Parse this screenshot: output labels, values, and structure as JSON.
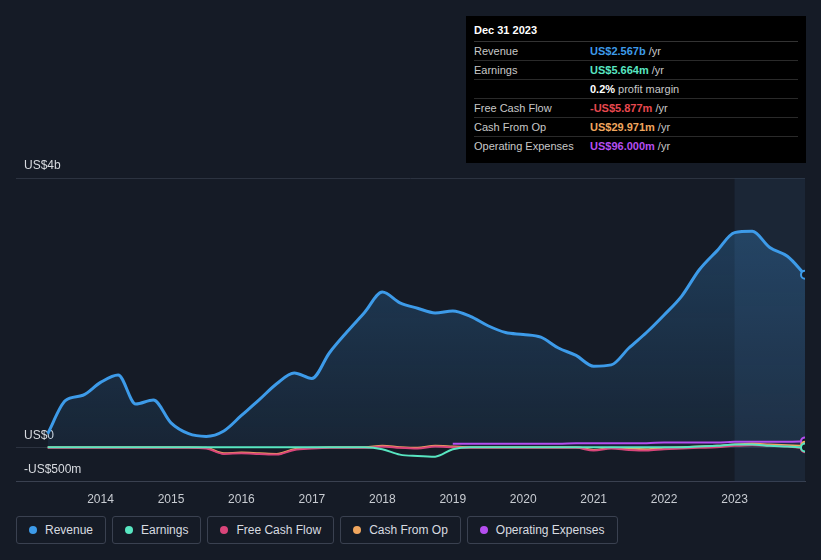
{
  "chart_data": {
    "type": "line",
    "x": [
      2013.25,
      2013.5,
      2013.75,
      2014,
      2014.25,
      2014.5,
      2014.75,
      2015,
      2015.25,
      2015.5,
      2015.75,
      2016,
      2016.25,
      2016.5,
      2016.75,
      2017,
      2017.25,
      2017.5,
      2017.75,
      2018,
      2018.25,
      2018.5,
      2018.75,
      2019,
      2019.25,
      2019.5,
      2019.75,
      2020,
      2020.25,
      2020.5,
      2020.75,
      2021,
      2021.25,
      2021.5,
      2021.75,
      2022,
      2022.25,
      2022.5,
      2022.75,
      2023,
      2023.25,
      2023.5,
      2023.75,
      2024
    ],
    "xlim": [
      2012.8,
      2024
    ],
    "xticks": [
      2014,
      2015,
      2016,
      2017,
      2018,
      2019,
      2020,
      2021,
      2022,
      2023
    ],
    "ylim": [
      -0.5,
      4
    ],
    "yticks": [
      {
        "value": -0.5,
        "label": "-US$500m"
      },
      {
        "value": 0,
        "label": "US$0"
      },
      {
        "value": 4,
        "label": "US$4b"
      }
    ],
    "grid": true,
    "legend": "bottom",
    "series": [
      {
        "name": "Revenue",
        "color": "#3d9be9",
        "values": [
          0.21,
          0.7,
          0.78,
          0.97,
          1.08,
          0.65,
          0.71,
          0.37,
          0.21,
          0.17,
          0.25,
          0.48,
          0.71,
          0.95,
          1.11,
          1.03,
          1.41,
          1.72,
          2.01,
          2.31,
          2.15,
          2.07,
          2.0,
          2.03,
          1.95,
          1.81,
          1.71,
          1.68,
          1.64,
          1.48,
          1.37,
          1.21,
          1.23,
          1.48,
          1.71,
          1.97,
          2.25,
          2.64,
          2.92,
          3.19,
          3.21,
          2.97,
          2.84,
          2.567
        ]
      },
      {
        "name": "Earnings",
        "color": "#58e6c1",
        "values": [
          0.01,
          0.01,
          0.01,
          0.01,
          0.01,
          0.01,
          0.01,
          0.01,
          0.01,
          0.01,
          0.01,
          0.01,
          0.01,
          0.01,
          0.01,
          0.01,
          0.01,
          0.01,
          0.01,
          -0.02,
          -0.1,
          -0.12,
          -0.13,
          -0.02,
          0.01,
          0.01,
          0.01,
          0.01,
          0.01,
          0.01,
          0.01,
          0.01,
          0.01,
          0.01,
          0.01,
          0.01,
          0.01,
          0.02,
          0.03,
          0.05,
          0.05,
          0.03,
          0.02,
          0.005664
        ]
      },
      {
        "name": "Free Cash Flow",
        "color": "#d9457a",
        "values": [
          0.0,
          0.0,
          0.0,
          0.0,
          0.0,
          0.0,
          0.0,
          0.0,
          0.0,
          -0.01,
          -0.09,
          -0.08,
          -0.09,
          -0.1,
          -0.03,
          -0.01,
          0.0,
          0.0,
          0.0,
          0.02,
          0.0,
          -0.01,
          0.02,
          0.01,
          0.0,
          0.0,
          0.0,
          0.0,
          0.0,
          0.0,
          0.0,
          -0.04,
          -0.01,
          -0.03,
          -0.04,
          -0.02,
          -0.01,
          0.0,
          0.01,
          0.03,
          0.04,
          0.03,
          0.02,
          -0.005877
        ]
      },
      {
        "name": "Cash From Op",
        "color": "#f0a65e",
        "values": [
          0.01,
          0.01,
          0.01,
          0.01,
          0.01,
          0.01,
          0.01,
          0.01,
          0.01,
          0.0,
          -0.08,
          -0.07,
          -0.08,
          -0.09,
          -0.02,
          0.0,
          0.01,
          0.01,
          0.01,
          0.03,
          0.01,
          0.0,
          0.03,
          0.02,
          0.01,
          0.01,
          0.01,
          0.01,
          0.01,
          0.01,
          0.01,
          -0.03,
          0.0,
          -0.01,
          -0.02,
          0.0,
          0.01,
          0.02,
          0.03,
          0.05,
          0.06,
          0.05,
          0.04,
          0.029971
        ]
      },
      {
        "name": "Operating Expenses",
        "color": "#b54ef0",
        "values": [
          null,
          null,
          null,
          null,
          null,
          null,
          null,
          null,
          null,
          null,
          null,
          null,
          null,
          null,
          null,
          null,
          null,
          null,
          null,
          null,
          null,
          null,
          null,
          0.06,
          0.06,
          0.06,
          0.06,
          0.06,
          0.06,
          0.06,
          0.07,
          0.07,
          0.07,
          0.07,
          0.07,
          0.08,
          0.08,
          0.08,
          0.08,
          0.09,
          0.09,
          0.09,
          0.09,
          0.096
        ]
      }
    ],
    "info_box": {
      "title": "Dec 31 2023",
      "rows": [
        {
          "label": "Revenue",
          "value": "US$2.567b",
          "unit": "/yr",
          "color": "#3d9be9"
        },
        {
          "label": "Earnings",
          "value": "US$5.664m",
          "unit": "/yr",
          "color": "#58e6c1"
        },
        {
          "value": "0.2%",
          "label": "profit margin",
          "color": "#ffffff"
        },
        {
          "label": "Free Cash Flow",
          "value": "-US$5.877m",
          "unit": "/yr",
          "color": "#e8484f"
        },
        {
          "label": "Cash From Op",
          "value": "US$29.971m",
          "unit": "/yr",
          "color": "#f0a65e"
        },
        {
          "label": "Operating Expenses",
          "value": "US$96.000m",
          "unit": "/yr",
          "color": "#b54ef0"
        }
      ]
    }
  }
}
